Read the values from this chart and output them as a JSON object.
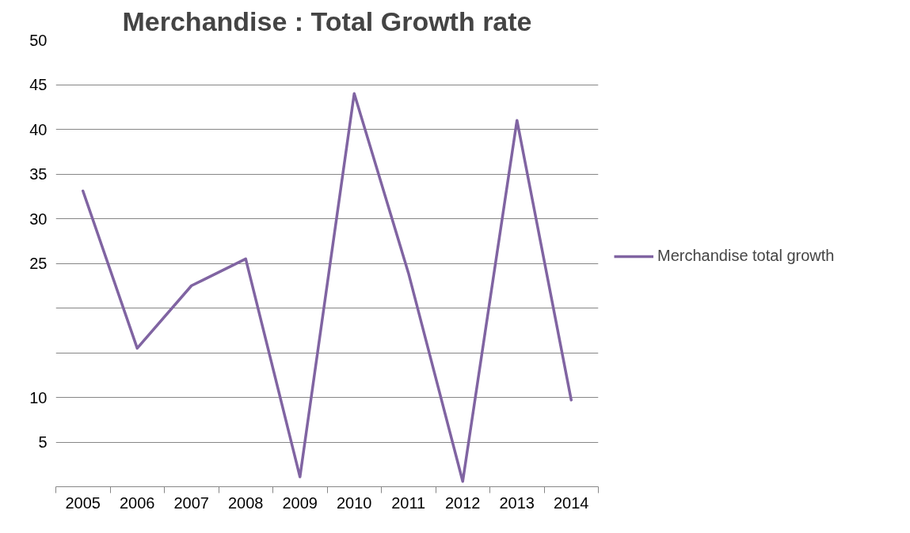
{
  "chart_data": {
    "type": "line",
    "title": "Merchandise : Total Growth rate",
    "categories": [
      "2005",
      "2006",
      "2007",
      "2008",
      "2009",
      "2010",
      "2011",
      "2012",
      "2013",
      "2014"
    ],
    "series": [
      {
        "name": "Merchandise total growth",
        "color": "#8064a2",
        "values": [
          33.1,
          15.5,
          22.5,
          25.5,
          1.1,
          44.0,
          23.9,
          0.6,
          41.0,
          9.7
        ]
      }
    ],
    "ylim": [
      0,
      50
    ],
    "yticks": [
      5,
      10,
      25,
      30,
      35,
      40,
      45,
      50
    ],
    "grid": "y",
    "legend": "right",
    "marker": "none",
    "line_style": "solid"
  }
}
